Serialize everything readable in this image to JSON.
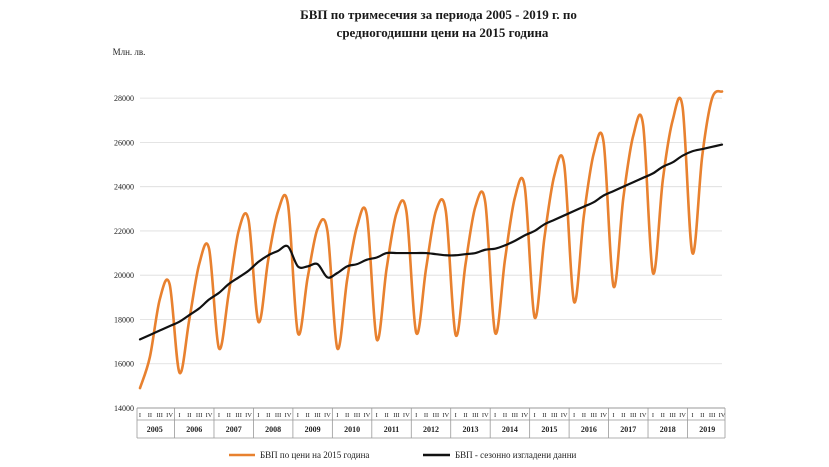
{
  "title_line1": "БВП по тримесечия за периода 2005 - 2019 г. по",
  "title_line2": "средногодишни цени на 2015 година",
  "colors": {
    "series1": "#e8812f",
    "series2": "#111111",
    "grid": "#dcdcdc",
    "axis": "#999999"
  },
  "chart_data": {
    "type": "line",
    "title": "БВП по тримесечия за периода 2005 - 2019 г. по средногодишни цени на 2015 година",
    "ylabel": "Млн. лв.",
    "xlabel": "",
    "ylim": [
      14000,
      29000
    ],
    "yticks": [
      14000,
      16000,
      18000,
      20000,
      22000,
      24000,
      26000,
      28000
    ],
    "grid": true,
    "legend_position": "bottom",
    "quarter_labels": [
      "I",
      "II",
      "III",
      "IV"
    ],
    "years": [
      "2005",
      "2006",
      "2007",
      "2008",
      "2009",
      "2010",
      "2011",
      "2012",
      "2013",
      "2014",
      "2015",
      "2016",
      "2017",
      "2018",
      "2019"
    ],
    "series": [
      {
        "name": "БВП  по цени на 2015 година",
        "values": [
          14900,
          16300,
          18900,
          19600,
          15600,
          18000,
          20500,
          21200,
          16700,
          19200,
          22000,
          22500,
          17900,
          20700,
          22900,
          23200,
          17400,
          19900,
          22100,
          22000,
          16700,
          19800,
          22200,
          22700,
          17100,
          20300,
          22800,
          22900,
          17400,
          20300,
          22900,
          22900,
          17300,
          20500,
          23100,
          23300,
          17400,
          20700,
          23500,
          24000,
          18100,
          21700,
          24500,
          25000,
          18800,
          22700,
          25500,
          26000,
          19500,
          23500,
          26300,
          26800,
          20100,
          24300,
          27000,
          27600,
          21000,
          25400,
          28000,
          28300
        ]
      },
      {
        "name": "БВП  - сезонно изгладени данни",
        "values": [
          17100,
          17300,
          17500,
          17700,
          17900,
          18200,
          18500,
          18900,
          19200,
          19600,
          19900,
          20200,
          20600,
          20900,
          21100,
          21300,
          20400,
          20400,
          20500,
          19900,
          20100,
          20400,
          20500,
          20700,
          20800,
          21000,
          21000,
          21000,
          21000,
          21000,
          20950,
          20900,
          20900,
          20950,
          21000,
          21150,
          21200,
          21350,
          21550,
          21800,
          22000,
          22300,
          22500,
          22700,
          22900,
          23100,
          23300,
          23600,
          23800,
          24000,
          24200,
          24400,
          24600,
          24900,
          25100,
          25400,
          25600,
          25700,
          25800,
          25900
        ]
      }
    ]
  }
}
